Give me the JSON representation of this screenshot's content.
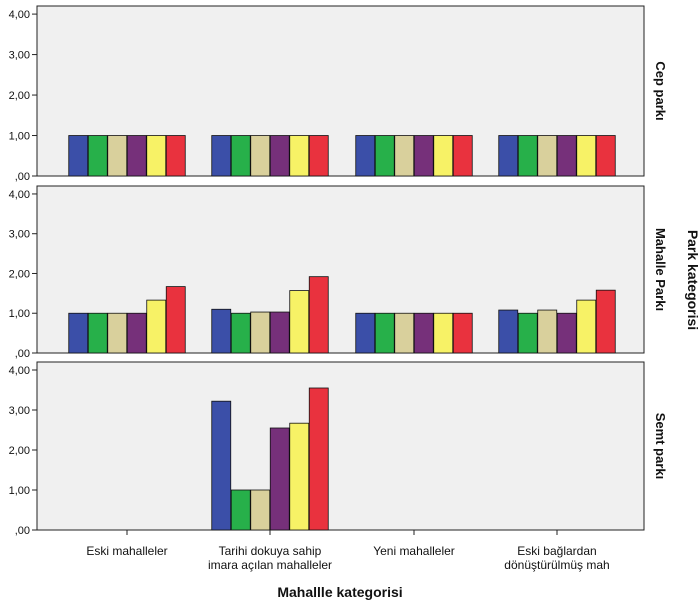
{
  "chart_data": {
    "type": "bar",
    "xlabel": "Mahallle kategorisi",
    "facet_axis_title": "Park kategorisi",
    "categories": [
      [
        "Eski mahalleler"
      ],
      [
        "Tarihi dokuya sahip",
        "imara açılan mahalleler"
      ],
      [
        "Yeni mahalleler"
      ],
      [
        "Eski bağlardan",
        "dönüştürülmüş mah"
      ]
    ],
    "ylim": [
      0,
      4.2
    ],
    "yticks": [
      0,
      1,
      2,
      3,
      4
    ],
    "ytick_labels": [
      ",00",
      "1,00",
      "2,00",
      "3,00",
      "4,00"
    ],
    "series_colors": [
      "#3b4fa8",
      "#27b04a",
      "#d9d09c",
      "#76307a",
      "#f7f266",
      "#e9323e"
    ],
    "facets": [
      {
        "label": "Cep parkı",
        "values": [
          [
            1,
            1,
            1,
            1,
            1,
            1
          ],
          [
            1,
            1,
            1,
            1,
            1,
            1
          ],
          [
            1,
            1,
            1,
            1,
            1,
            1
          ],
          [
            1,
            1,
            1,
            1,
            1,
            1
          ]
        ]
      },
      {
        "label": "Mahalle Parkı",
        "values": [
          [
            1,
            1,
            1,
            1,
            1.33,
            1.67
          ],
          [
            1.1,
            1,
            1.03,
            1.03,
            1.57,
            1.92
          ],
          [
            1,
            1,
            1,
            1,
            1,
            1
          ],
          [
            1.08,
            1,
            1.08,
            1,
            1.33,
            1.58
          ]
        ]
      },
      {
        "label": "Semt parkı",
        "values": [
          [],
          [
            3.22,
            1,
            1,
            2.55,
            2.67,
            3.55
          ],
          [],
          []
        ]
      }
    ],
    "grid": false
  }
}
